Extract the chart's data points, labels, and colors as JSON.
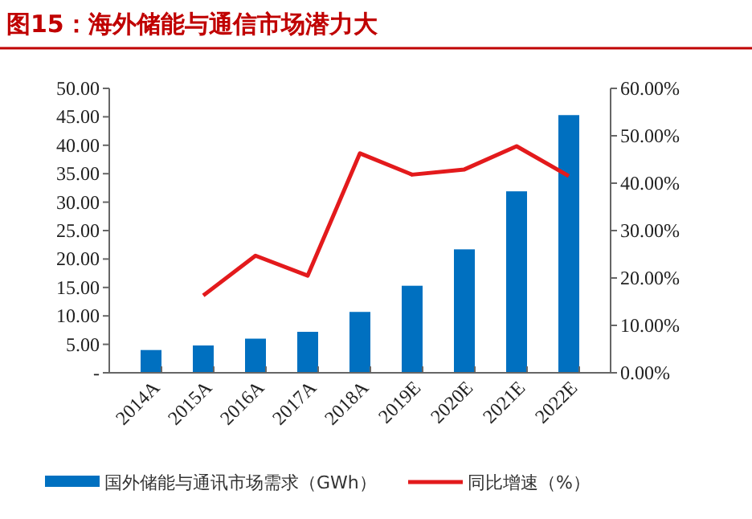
{
  "chart_data": {
    "type": "bar",
    "title": "图15：海外储能与通信市场潜力大",
    "categories": [
      "2014A",
      "2015A",
      "2016A",
      "2017A",
      "2018A",
      "2019E",
      "2020E",
      "2021E",
      "2022E"
    ],
    "series": [
      {
        "name": "国外储能与通讯市场需求（GWh）",
        "color": "#0070c0",
        "values": [
          4.0,
          4.8,
          6.0,
          7.2,
          10.7,
          15.3,
          21.7,
          31.9,
          45.3
        ]
      },
      {
        "name": "同比增速（%）",
        "type": "line",
        "axis": "y2",
        "color": "#e31a1c",
        "values": [
          null,
          16.3,
          24.7,
          20.5,
          46.3,
          41.8,
          42.9,
          47.8,
          41.5
        ]
      }
    ],
    "ylim": [
      0,
      50
    ],
    "yticks": [
      {
        "value": 0,
        "label": "-"
      },
      {
        "value": 5,
        "label": "5.00"
      },
      {
        "value": 10,
        "label": "10.00"
      },
      {
        "value": 15,
        "label": "15.00"
      },
      {
        "value": 20,
        "label": "20.00"
      },
      {
        "value": 25,
        "label": "25.00"
      },
      {
        "value": 30,
        "label": "30.00"
      },
      {
        "value": 35,
        "label": "35.00"
      },
      {
        "value": 40,
        "label": "40.00"
      },
      {
        "value": 45,
        "label": "45.00"
      },
      {
        "value": 50,
        "label": "50.00"
      }
    ],
    "y2lim": [
      0,
      60
    ],
    "y2ticks": [
      {
        "value": 0,
        "label": "0.00%"
      },
      {
        "value": 10,
        "label": "10.00%"
      },
      {
        "value": 20,
        "label": "20.00%"
      },
      {
        "value": 30,
        "label": "30.00%"
      },
      {
        "value": 40,
        "label": "40.00%"
      },
      {
        "value": 50,
        "label": "50.00%"
      },
      {
        "value": 60,
        "label": "60.00%"
      }
    ],
    "grid": false,
    "legend": "bottom"
  }
}
